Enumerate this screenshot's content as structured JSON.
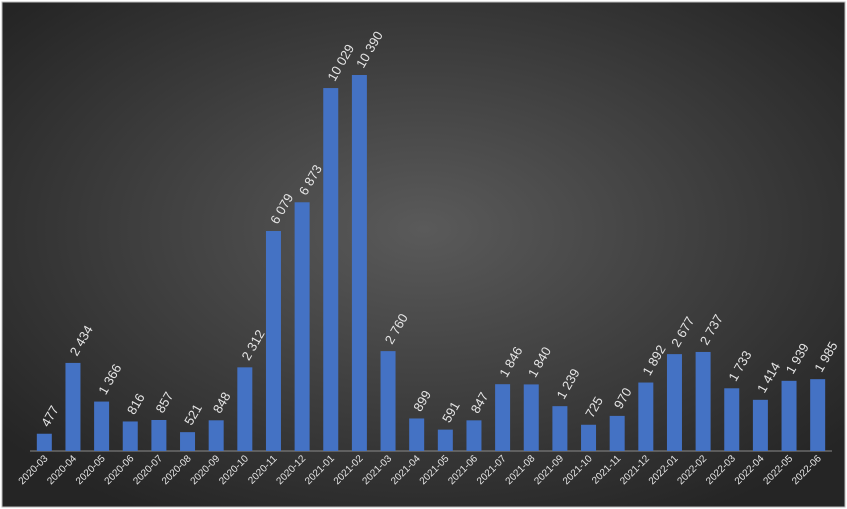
{
  "chart_data": {
    "type": "bar",
    "categories": [
      "2020-03",
      "2020-04",
      "2020-05",
      "2020-06",
      "2020-07",
      "2020-08",
      "2020-09",
      "2020-10",
      "2020-11",
      "2020-12",
      "2021-01",
      "2021-02",
      "2021-03",
      "2021-04",
      "2021-05",
      "2021-06",
      "2021-07",
      "2021-08",
      "2021-09",
      "2021-10",
      "2021-11",
      "2021-12",
      "2022-01",
      "2022-02",
      "2022-03",
      "2022-04",
      "2022-05",
      "2022-06"
    ],
    "values": [
      477,
      2434,
      1366,
      816,
      857,
      521,
      848,
      2312,
      6079,
      6873,
      10029,
      10390,
      2760,
      899,
      591,
      847,
      1846,
      1840,
      1239,
      725,
      970,
      1892,
      2677,
      2737,
      1733,
      1414,
      1939,
      1985
    ],
    "value_labels": [
      "477",
      "2 434",
      "1 366",
      "816",
      "857",
      "521",
      "848",
      "2 312",
      "6 079",
      "6 873",
      "10 029",
      "10 390",
      "2 760",
      "899",
      "591",
      "847",
      "1 846",
      "1 840",
      "1 239",
      "725",
      "970",
      "1 892",
      "2 677",
      "2 737",
      "1 733",
      "1 414",
      "1 939",
      "1 985"
    ],
    "color": "#4472c4"
  }
}
